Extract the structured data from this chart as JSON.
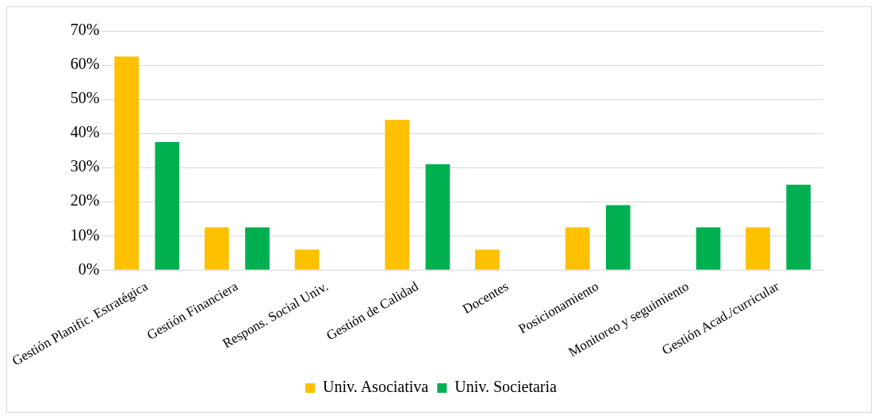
{
  "chart_data": {
    "type": "bar",
    "categories": [
      "Gestión Planific. Estratégica",
      "Gestión Financiera",
      "Respons. Social Univ.",
      "Gestión de Calidad",
      "Docentes",
      "Posicionamiento",
      "Monitoreo y seguimiento",
      "Gestión Acad./curricular"
    ],
    "series": [
      {
        "name": "Univ. Asociativa",
        "color": "#ffc000",
        "values": [
          62.5,
          12.5,
          6,
          44,
          6,
          12.5,
          0,
          12.5
        ]
      },
      {
        "name": "Univ. Societaria",
        "color": "#00b050",
        "values": [
          37.5,
          12.5,
          0,
          31,
          0,
          19,
          12.5,
          25
        ]
      }
    ],
    "ylim": [
      0,
      70
    ],
    "yticks": [
      {
        "value": 0,
        "label": "0%"
      },
      {
        "value": 10,
        "label": "10%"
      },
      {
        "value": 20,
        "label": "20%"
      },
      {
        "value": 30,
        "label": "30%"
      },
      {
        "value": 40,
        "label": "40%"
      },
      {
        "value": 50,
        "label": "50%"
      },
      {
        "value": 60,
        "label": "60%"
      },
      {
        "value": 70,
        "label": "70%"
      }
    ],
    "grid": "y",
    "legend": "bottom"
  }
}
